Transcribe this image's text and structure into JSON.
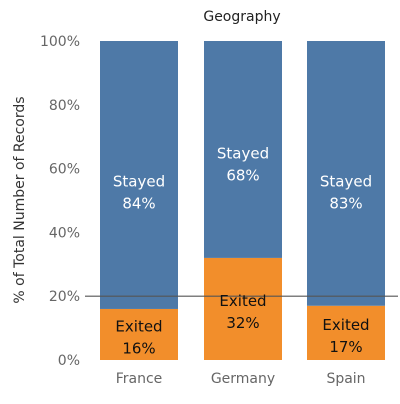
{
  "chart_data": {
    "type": "bar",
    "stacked": true,
    "title": "Geography",
    "xlabel": "",
    "ylabel": "% of Total Number of Records",
    "ylim": [
      0,
      100
    ],
    "yticks": [
      "0%",
      "20%",
      "40%",
      "60%",
      "80%",
      "100%"
    ],
    "categories": [
      "France",
      "Germany",
      "Spain"
    ],
    "series": [
      {
        "name": "Exited",
        "values": [
          16,
          32,
          17
        ],
        "labels": [
          "16%",
          "32%",
          "17%"
        ],
        "color": "#f28e2b",
        "label_color": "#111111"
      },
      {
        "name": "Stayed",
        "values": [
          84,
          68,
          83
        ],
        "labels": [
          "84%",
          "68%",
          "83%"
        ],
        "color": "#4e79a7",
        "label_color": "#ffffff"
      }
    ],
    "reference_line": {
      "value": 20,
      "color": "#555555"
    },
    "legend": "none",
    "grid": false
  }
}
